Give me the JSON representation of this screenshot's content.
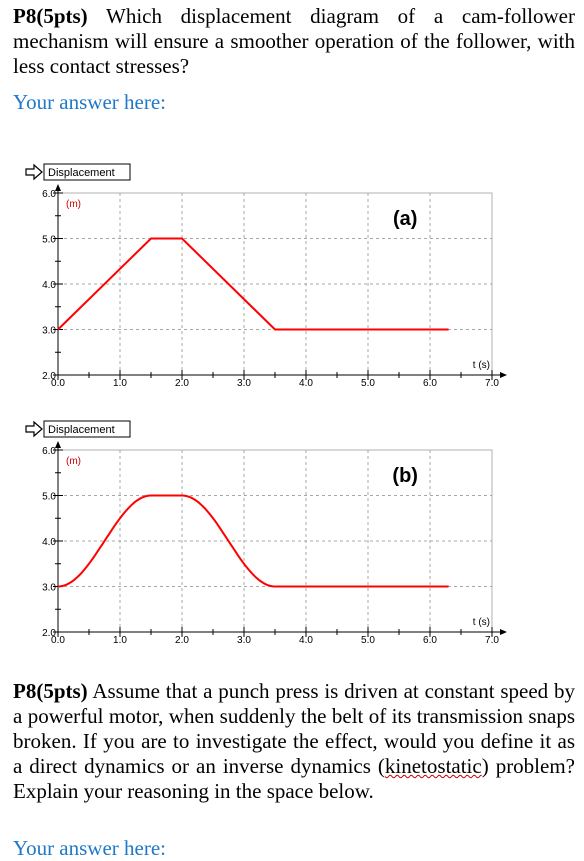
{
  "question1": {
    "label": "P8(5pts)",
    "text": " Which displacement diagram of a cam-follower mechanism will ensure a smoother operation of the follower, with less contact stresses?"
  },
  "answer_placeholder": "Your answer here:",
  "chart_data": [
    {
      "type": "line",
      "tag": "(a)",
      "legend_label": "Displacement",
      "unit_label": "(m)",
      "xlabel": "t (s)",
      "xlim": [
        0,
        7
      ],
      "ylim": [
        2,
        6
      ],
      "x_ticks": [
        "0.0",
        "1.0",
        "2.0",
        "3.0",
        "4.0",
        "5.0",
        "6.0",
        "7.0"
      ],
      "y_ticks": [
        "2.0",
        "3.0",
        "4.0",
        "5.0",
        "6.0"
      ],
      "grid": true,
      "series": [
        {
          "color": "#ff0000",
          "x": [
            0,
            1.5,
            2.0,
            3.5,
            6.3
          ],
          "y": [
            3.0,
            5.0,
            5.0,
            3.0,
            3.0
          ],
          "curve": "linear"
        }
      ]
    },
    {
      "type": "line",
      "tag": "(b)",
      "legend_label": "Displacement",
      "unit_label": "(m)",
      "xlabel": "t (s)",
      "xlim": [
        0,
        7
      ],
      "ylim": [
        2,
        6
      ],
      "x_ticks": [
        "0.0",
        "1.0",
        "2.0",
        "3.0",
        "4.0",
        "5.0",
        "6.0",
        "7.0"
      ],
      "y_ticks": [
        "2.0",
        "3.0",
        "4.0",
        "5.0",
        "6.0"
      ],
      "grid": true,
      "series": [
        {
          "color": "#ff0000",
          "x": [
            0,
            1.5,
            2.0,
            3.5,
            6.3
          ],
          "y": [
            3.0,
            5.0,
            5.0,
            3.0,
            3.0
          ],
          "curve": "smooth"
        }
      ]
    }
  ],
  "question2": {
    "label": "P8(5pts)",
    "text_before": " Assume that a punch press is driven at constant speed by a powerful motor, when suddenly the belt of its transmission snaps broken. If you are to investigate the effect, would you define it as a direct dynamics or an inverse dynamics (",
    "underlined_word": "kinetostatic",
    "text_after": ") problem?  Explain your reasoning in the space below."
  },
  "answer_placeholder_2": "Your answer here:"
}
